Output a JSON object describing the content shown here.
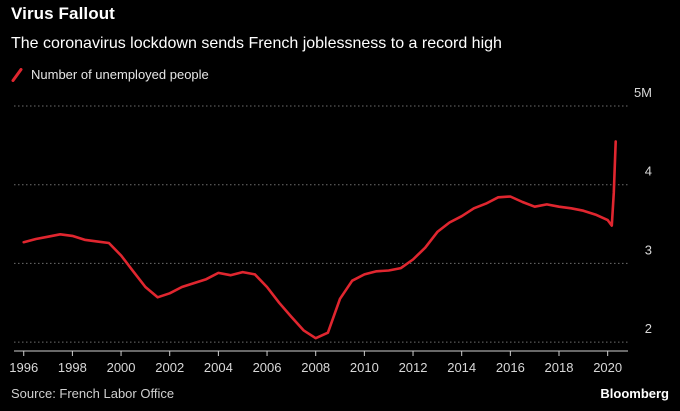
{
  "header": {
    "title": "Virus Fallout",
    "subtitle": "The coronavirus lockdown sends French joblessness to a record high"
  },
  "footer": {
    "source": "Source: French Labor Office",
    "logo": "Bloomberg"
  },
  "colors": {
    "background": "#000000",
    "line": "#e0262f",
    "grid": "#6e6e6e",
    "tick": "#d8d8d8"
  },
  "chart_data": {
    "type": "line",
    "title": "Virus Fallout",
    "subtitle": "The coronavirus lockdown sends French joblessness to a record high",
    "xlabel": "",
    "ylabel": "",
    "xlim": [
      1995.6,
      2021.0
    ],
    "ylim": [
      1.9,
      5.0
    ],
    "y_ticks": [
      2,
      3,
      4,
      5
    ],
    "y_tick_labels": [
      "2",
      "3",
      "4",
      "5M"
    ],
    "x_ticks": [
      1996,
      1998,
      2000,
      2002,
      2004,
      2006,
      2008,
      2010,
      2012,
      2014,
      2016,
      2018,
      2020
    ],
    "x_tick_labels": [
      "1996",
      "1998",
      "2000",
      "2002",
      "2004",
      "2006",
      "2008",
      "2010",
      "2012",
      "2014",
      "2016",
      "2018",
      "2020"
    ],
    "grid": "horizontal dotted",
    "legend_position": "top-left",
    "series": [
      {
        "name": "Number of unemployed people",
        "x": [
          1996.0,
          1996.5,
          1997.0,
          1997.5,
          1998.0,
          1998.5,
          1999.0,
          1999.5,
          2000.0,
          2000.5,
          2001.0,
          2001.5,
          2002.0,
          2002.5,
          2003.0,
          2003.5,
          2004.0,
          2004.5,
          2005.0,
          2005.5,
          2006.0,
          2006.5,
          2007.0,
          2007.5,
          2008.0,
          2008.5,
          2009.0,
          2009.5,
          2010.0,
          2010.5,
          2011.0,
          2011.5,
          2012.0,
          2012.5,
          2013.0,
          2013.5,
          2014.0,
          2014.5,
          2015.0,
          2015.5,
          2016.0,
          2016.5,
          2017.0,
          2017.5,
          2018.0,
          2018.5,
          2019.0,
          2019.5,
          2020.0,
          2020.17,
          2020.25,
          2020.33
        ],
        "values": [
          3.27,
          3.31,
          3.34,
          3.37,
          3.35,
          3.3,
          3.28,
          3.26,
          3.1,
          2.9,
          2.7,
          2.57,
          2.62,
          2.7,
          2.75,
          2.8,
          2.88,
          2.85,
          2.89,
          2.86,
          2.7,
          2.5,
          2.32,
          2.15,
          2.05,
          2.12,
          2.55,
          2.78,
          2.86,
          2.9,
          2.91,
          2.94,
          3.05,
          3.2,
          3.4,
          3.52,
          3.6,
          3.7,
          3.76,
          3.84,
          3.85,
          3.78,
          3.72,
          3.75,
          3.72,
          3.7,
          3.67,
          3.62,
          3.55,
          3.48,
          3.9,
          4.55
        ]
      }
    ]
  }
}
